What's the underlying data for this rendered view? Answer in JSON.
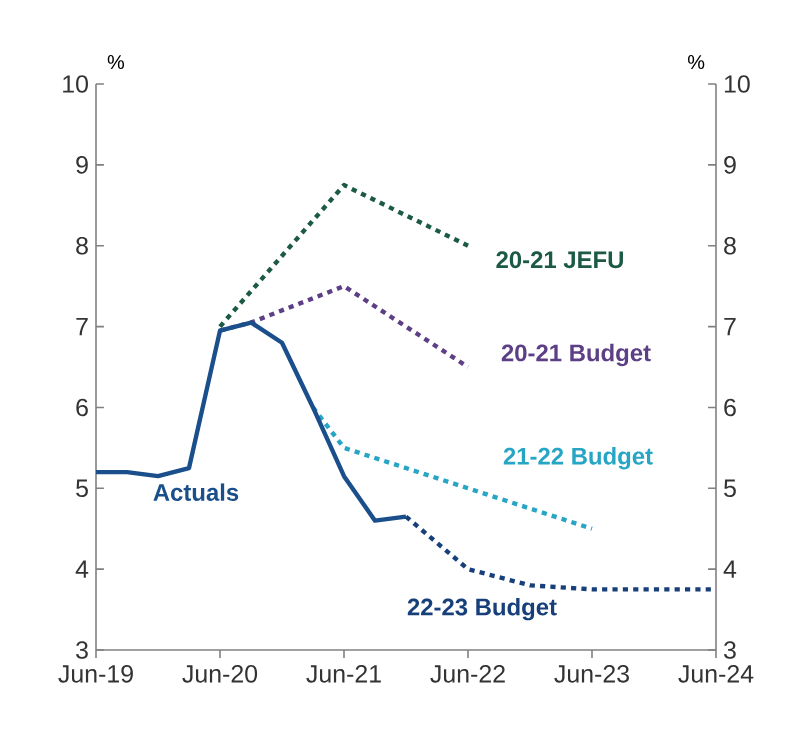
{
  "chart_data": {
    "type": "line",
    "ylabel": "%",
    "y2label": "%",
    "legend": false,
    "grid": false,
    "xlim": [
      "2019-06",
      "2024-06"
    ],
    "xticks": [
      {
        "value": "2019-06",
        "label": "Jun-19"
      },
      {
        "value": "2020-06",
        "label": "Jun-20"
      },
      {
        "value": "2021-06",
        "label": "Jun-21"
      },
      {
        "value": "2022-06",
        "label": "Jun-22"
      },
      {
        "value": "2023-06",
        "label": "Jun-23"
      },
      {
        "value": "2024-06",
        "label": "Jun-24"
      }
    ],
    "ylim": [
      3,
      10
    ],
    "yticks": [
      3,
      4,
      5,
      6,
      7,
      8,
      9,
      10
    ],
    "y2lim": [
      3,
      10
    ],
    "y2ticks": [
      3,
      4,
      5,
      6,
      7,
      8,
      9,
      10
    ],
    "series": [
      {
        "name": "20-21 JEFU",
        "color": "#1d5a45",
        "line_style": "dotted",
        "x": [
          "2020-06",
          "2021-06",
          "2022-06"
        ],
        "values": [
          7.0,
          8.75,
          8.0
        ]
      },
      {
        "name": "20-21 Budget",
        "color": "#5c3f85",
        "line_style": "dotted",
        "x": [
          "2020-06",
          "2020-09",
          "2021-06",
          "2022-06"
        ],
        "values": [
          6.95,
          7.05,
          7.5,
          6.5
        ]
      },
      {
        "name": "21-22 Budget",
        "color": "#27a5c4",
        "line_style": "dotted",
        "x": [
          "2021-03",
          "2021-06",
          "2022-06",
          "2023-06"
        ],
        "values": [
          6.0,
          5.5,
          5.0,
          4.5
        ]
      },
      {
        "name": "22-23 Budget",
        "color": "#173f7a",
        "line_style": "dotted",
        "x": [
          "2021-12",
          "2022-06",
          "2022-12",
          "2023-06",
          "2024-06"
        ],
        "values": [
          4.65,
          4.0,
          3.8,
          3.75,
          3.75
        ]
      },
      {
        "name": "Actuals",
        "color": "#1a4f8b",
        "line_style": "solid",
        "x": [
          "2019-06",
          "2019-09",
          "2019-12",
          "2020-03",
          "2020-06",
          "2020-09",
          "2020-12",
          "2021-03",
          "2021-06",
          "2021-09",
          "2021-12"
        ],
        "values": [
          5.2,
          5.2,
          5.15,
          5.25,
          6.95,
          7.05,
          6.8,
          6.0,
          5.15,
          4.6,
          4.65
        ]
      }
    ]
  }
}
